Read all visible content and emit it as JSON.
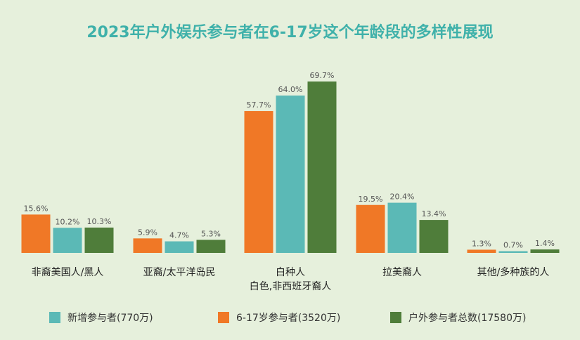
{
  "title": "2023年户外娱乐参与者在6-17岁这个年龄段的多样性展现",
  "chart_data": {
    "type": "bar",
    "title": "2023年户外娱乐参与者在6-17岁这个年龄段的多样性展现",
    "categories": [
      [
        "非裔美国人/黑人"
      ],
      [
        "亚裔/太平洋岛民"
      ],
      [
        "白种人",
        "白色,非西班牙裔人"
      ],
      [
        "拉美裔人"
      ],
      [
        "其他/多种族的人"
      ]
    ],
    "series": [
      {
        "name": "6-17岁参与者(3520万)",
        "color": "#f07826",
        "values": [
          15.6,
          5.9,
          57.7,
          19.5,
          1.3
        ],
        "labels": [
          "15.6%",
          "5.9%",
          "57.7%",
          "19.5%",
          "1.3%"
        ]
      },
      {
        "name": "新增参与者(770万)",
        "color": "#5bb9b6",
        "values": [
          10.2,
          4.7,
          64.0,
          20.4,
          0.7
        ],
        "labels": [
          "10.2%",
          "4.7%",
          "64.0%",
          "20.4%",
          "0.7%"
        ]
      },
      {
        "name": "户外参与者总数(17580万)",
        "color": "#4f7d3a",
        "values": [
          10.3,
          5.3,
          69.7,
          13.4,
          1.4
        ],
        "labels": [
          "10.3%",
          "5.3%",
          "69.7%",
          "13.4%",
          "1.4%"
        ]
      }
    ],
    "ylim": [
      0,
      72
    ],
    "grid": false,
    "legend_position": "bottom",
    "legend_order": [
      1,
      0,
      2
    ]
  }
}
